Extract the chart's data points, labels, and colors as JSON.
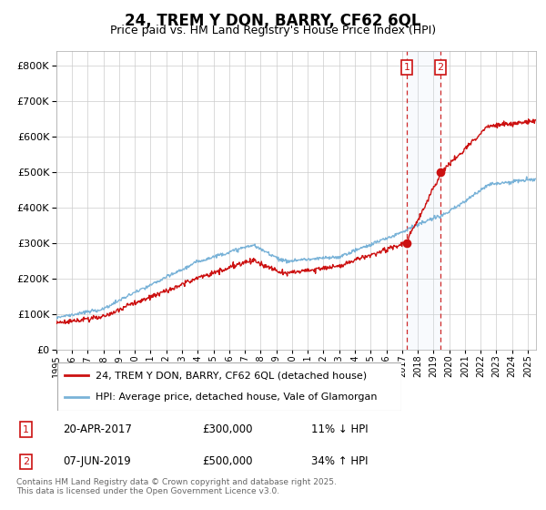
{
  "title": "24, TREM Y DON, BARRY, CF62 6QL",
  "subtitle": "Price paid vs. HM Land Registry's House Price Index (HPI)",
  "ytick_values": [
    0,
    100000,
    200000,
    300000,
    400000,
    500000,
    600000,
    700000,
    800000
  ],
  "ylim": [
    0,
    840000
  ],
  "xlim_start": 1995.0,
  "xlim_end": 2025.5,
  "transaction1": {
    "date": 2017.3,
    "price": 300000,
    "label": "1",
    "note": "20-APR-2017",
    "price_str": "£300,000",
    "hpi_note": "11% ↓ HPI"
  },
  "transaction2": {
    "date": 2019.45,
    "price": 500000,
    "label": "2",
    "note": "07-JUN-2019",
    "price_str": "£500,000",
    "hpi_note": "34% ↑ HPI"
  },
  "legend_line1": "24, TREM Y DON, BARRY, CF62 6QL (detached house)",
  "legend_line2": "HPI: Average price, detached house, Vale of Glamorgan",
  "footer": "Contains HM Land Registry data © Crown copyright and database right 2025.\nThis data is licensed under the Open Government Licence v3.0.",
  "hpi_color": "#7ab3d8",
  "price_color": "#cc1111",
  "vline_color": "#cc1111",
  "span_color": "#d0e4f5",
  "background_color": "#ffffff",
  "grid_color": "#cccccc"
}
